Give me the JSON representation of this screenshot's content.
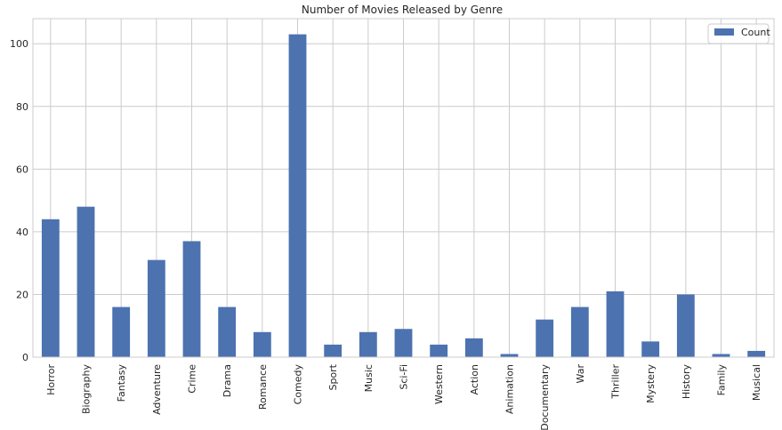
{
  "chart_data": {
    "type": "bar",
    "title": "Number of Movies Released by Genre",
    "xlabel": "",
    "ylabel": "",
    "categories": [
      "Horror",
      "Biography",
      "Fantasy",
      "Adventure",
      "Crime",
      "Drama",
      "Romance",
      "Comedy",
      "Sport",
      "Music",
      "Sci-Fi",
      "Western",
      "Action",
      "Animation",
      "Documentary",
      "War",
      "Thriller",
      "Mystery",
      "History",
      "Family",
      "Musical"
    ],
    "series": [
      {
        "name": "Count",
        "values": [
          44,
          48,
          16,
          31,
          37,
          16,
          8,
          103,
          4,
          8,
          9,
          4,
          6,
          1,
          12,
          16,
          21,
          5,
          20,
          1,
          2
        ],
        "color": "#4c72b0"
      }
    ],
    "ylim": [
      0,
      108
    ],
    "yticks": [
      0,
      20,
      40,
      60,
      80,
      100
    ],
    "grid": true,
    "legend_position": "top-right"
  }
}
